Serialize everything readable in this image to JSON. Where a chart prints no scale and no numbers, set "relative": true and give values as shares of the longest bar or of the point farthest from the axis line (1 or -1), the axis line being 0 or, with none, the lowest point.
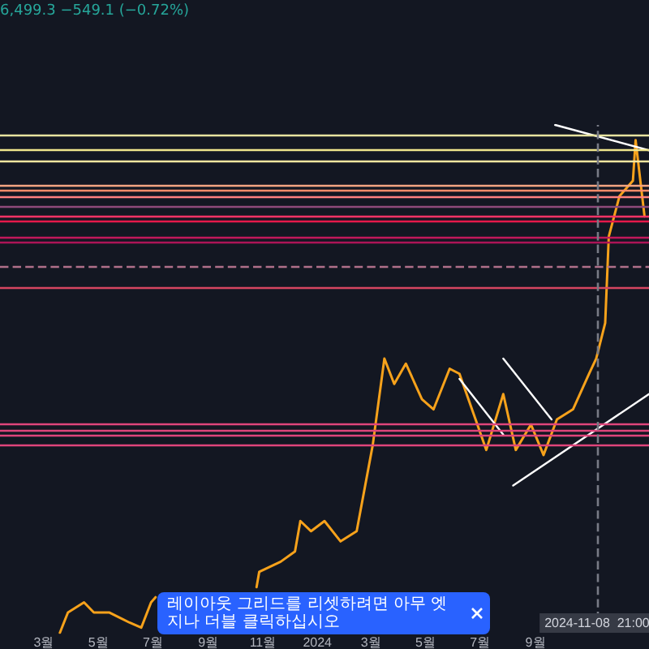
{
  "chart_data": {
    "type": "line",
    "relative": true,
    "tick_labels": "x",
    "grid": false,
    "marker": "none",
    "line_style": "solid",
    "xlim": [
      "2023-01-11",
      "2025-01-06"
    ],
    "xticks": [
      {
        "value": "2023-03-01",
        "label": "3월"
      },
      {
        "value": "2023-05-01",
        "label": "5월"
      },
      {
        "value": "2023-07-01",
        "label": "7월"
      },
      {
        "value": "2023-09-01",
        "label": "9월"
      },
      {
        "value": "2023-11-01",
        "label": "11월"
      },
      {
        "value": "2024-01-01",
        "label": "2024"
      },
      {
        "value": "2024-03-01",
        "label": "3월"
      },
      {
        "value": "2024-05-01",
        "label": "5월"
      },
      {
        "value": "2024-07-01",
        "label": "7월"
      },
      {
        "value": "2024-09-01",
        "label": "9월"
      }
    ],
    "series": [
      {
        "color": "#f7a21b",
        "x": [
          "2023-03-19",
          "2023-03-28",
          "2023-04-15",
          "2023-04-26",
          "2023-05-13",
          "2023-06-05",
          "2023-06-18",
          "2023-06-29",
          "2023-07-04",
          "2023-08-15",
          "2023-10-25",
          "2023-10-28",
          "2023-11-21",
          "2023-12-07",
          "2023-12-13",
          "2023-12-25",
          "2024-01-09",
          "2024-01-27",
          "2024-02-14",
          "2024-03-03",
          "2024-03-16",
          "2024-03-27",
          "2024-04-09",
          "2024-04-27",
          "2024-05-10",
          "2024-05-28",
          "2024-06-08",
          "2024-06-26",
          "2024-07-08",
          "2024-07-27",
          "2024-08-10",
          "2024-08-27",
          "2024-09-10",
          "2024-09-25",
          "2024-10-13",
          "2024-10-31",
          "2024-11-08",
          "2024-11-18",
          "2024-11-22",
          "2024-12-04",
          "2024-12-19",
          "2024-12-22",
          "2025-01-01"
        ],
        "values": [
          0,
          0.04,
          0.06,
          0.04,
          0.04,
          0.02,
          0.01,
          0.06,
          0.07,
          null,
          0.09,
          0.12,
          0.14,
          0.16,
          0.22,
          0.2,
          0.22,
          0.18,
          0.2,
          0.37,
          0.54,
          0.49,
          0.53,
          0.46,
          0.44,
          0.52,
          0.51,
          0.42,
          0.36,
          0.47,
          0.36,
          0.41,
          0.35,
          0.42,
          0.44,
          0.51,
          0.54,
          0.61,
          0.78,
          0.86,
          0.89,
          0.97,
          0.82
        ]
      },
      {
        "color": "#ffffff",
        "x": [
          "2024-08-07",
          "2025-01-06"
        ],
        "values": [
          0.29,
          0.47
        ]
      },
      {
        "color": "#ffffff",
        "x": [
          "2024-07-27",
          "2024-09-19"
        ],
        "values": [
          0.54,
          0.42
        ]
      },
      {
        "color": "#ffffff",
        "x": [
          "2024-06-08",
          "2024-07-27"
        ],
        "values": [
          0.5,
          0.39
        ]
      },
      {
        "color": "#ffffff",
        "x": [
          "2024-09-23",
          "2025-01-06"
        ],
        "values": [
          1,
          0.95
        ]
      }
    ],
    "ref_lines": [
      {
        "axis": "y",
        "value": 0.98,
        "color": "#e8e4a0"
      },
      {
        "axis": "y",
        "value": 0.95,
        "color": "#f0e68c"
      },
      {
        "axis": "y",
        "value": 0.93,
        "color": "#f5e7a0"
      },
      {
        "axis": "y",
        "value": 0.88,
        "color": "#f4a582"
      },
      {
        "axis": "y",
        "value": 0.87,
        "color": "#ff8c69"
      },
      {
        "axis": "y",
        "value": 0.86,
        "color": "#ff7f7f"
      },
      {
        "axis": "y",
        "value": 0.84,
        "color": "#8e4a7a"
      },
      {
        "axis": "y",
        "value": 0.82,
        "color": "#ff3366"
      },
      {
        "axis": "y",
        "value": 0.81,
        "color": "#e6194b"
      },
      {
        "axis": "y",
        "value": 0.78,
        "color": "#c2185b"
      },
      {
        "axis": "y",
        "value": 0.77,
        "color": "#ad1457"
      },
      {
        "axis": "y",
        "value": 0.72,
        "color": "#b0708a",
        "line_style": "dashed"
      },
      {
        "axis": "y",
        "value": 0.68,
        "color": "#d64561"
      },
      {
        "axis": "y",
        "value": 0.41,
        "color": "#e0457b"
      },
      {
        "axis": "y",
        "value": 0.395,
        "color": "#e0457b"
      },
      {
        "axis": "y",
        "value": 0.385,
        "color": "#e0457b"
      },
      {
        "axis": "y",
        "value": 0.37,
        "color": "#e0457b"
      },
      {
        "axis": "x",
        "value": "2024-11-08T21:00",
        "label": "2024-11-08  21:00",
        "color": "#787b86",
        "line_style": "dashed"
      }
    ],
    "annotations": [
      "6,499.3 −549.1 (−0.72%)",
      "레이아웃 그리드를 리셋하려면 아무 엣지나 더블 클릭하십시오"
    ]
  }
}
